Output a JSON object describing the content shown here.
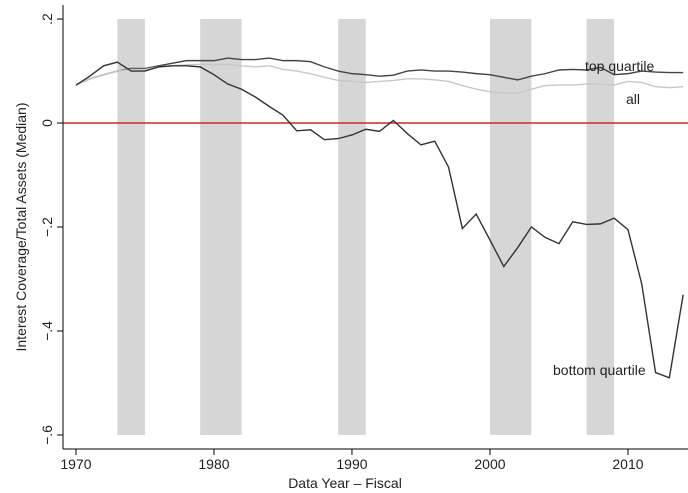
{
  "chart_data": {
    "type": "line",
    "y_label": "Interest Coverage/Total Assets (Median)",
    "x_label": "Data Year – Fiscal",
    "x": [
      1970,
      1971,
      1972,
      1973,
      1974,
      1975,
      1976,
      1977,
      1978,
      1979,
      1980,
      1981,
      1982,
      1983,
      1984,
      1985,
      1986,
      1987,
      1988,
      1989,
      1990,
      1991,
      1992,
      1993,
      1994,
      1995,
      1996,
      1997,
      1998,
      1999,
      2000,
      2001,
      2002,
      2003,
      2004,
      2005,
      2006,
      2007,
      2008,
      2009,
      2010,
      2011,
      2012,
      2013,
      2014
    ],
    "series": [
      {
        "name": "top quartile",
        "color": "#444444",
        "values": [
          0.073,
          0.085,
          0.093,
          0.1,
          0.105,
          0.105,
          0.11,
          0.115,
          0.12,
          0.12,
          0.12,
          0.125,
          0.122,
          0.122,
          0.125,
          0.12,
          0.12,
          0.118,
          0.108,
          0.1,
          0.095,
          0.093,
          0.09,
          0.092,
          0.1,
          0.102,
          0.1,
          0.1,
          0.098,
          0.095,
          0.093,
          0.088,
          0.083,
          0.09,
          0.095,
          0.102,
          0.103,
          0.102,
          0.107,
          0.093,
          0.095,
          0.1,
          0.098,
          0.097,
          0.097
        ]
      },
      {
        "name": "all",
        "color": "#c8c8c8",
        "values": [
          0.073,
          0.085,
          0.093,
          0.1,
          0.103,
          0.103,
          0.108,
          0.11,
          0.112,
          0.113,
          0.112,
          0.113,
          0.11,
          0.108,
          0.11,
          0.103,
          0.1,
          0.095,
          0.088,
          0.082,
          0.08,
          0.078,
          0.08,
          0.082,
          0.085,
          0.085,
          0.083,
          0.08,
          0.072,
          0.065,
          0.06,
          0.058,
          0.057,
          0.065,
          0.072,
          0.073,
          0.073,
          0.075,
          0.075,
          0.073,
          0.08,
          0.078,
          0.07,
          0.068,
          0.07
        ]
      },
      {
        "name": "bottom quartile",
        "color": "#333333",
        "values": [
          0.073,
          0.09,
          0.11,
          0.117,
          0.1,
          0.1,
          0.108,
          0.11,
          0.11,
          0.108,
          0.093,
          0.075,
          0.065,
          0.05,
          0.032,
          0.015,
          -0.015,
          -0.013,
          -0.032,
          -0.03,
          -0.023,
          -0.012,
          -0.016,
          0.005,
          -0.02,
          -0.042,
          -0.035,
          -0.085,
          -0.203,
          -0.175,
          -0.225,
          -0.276,
          -0.24,
          -0.2,
          -0.22,
          -0.232,
          -0.19,
          -0.195,
          -0.194,
          -0.183,
          -0.205,
          -0.31,
          -0.48,
          -0.49,
          -0.33
        ]
      }
    ],
    "shaded_periods": [
      [
        1973,
        1975
      ],
      [
        1979,
        1982
      ],
      [
        1989,
        1991
      ],
      [
        2000,
        2003
      ],
      [
        2007,
        2009
      ]
    ],
    "shade_color": "#d6d6d6",
    "reference_line": 0,
    "reference_color": "#cc2a2a",
    "xlim": [
      1969.06,
      2014.35
    ],
    "ylim": [
      -0.627,
      0.227
    ],
    "xticks": [
      1970,
      1980,
      1990,
      2000,
      2010
    ],
    "yticks": [
      {
        "value": -0.6,
        "label": "−.6"
      },
      {
        "value": -0.4,
        "label": "−.4"
      },
      {
        "value": -0.2,
        "label": "−.2"
      },
      0,
      {
        "value": 0.2,
        "label": ".2"
      }
    ],
    "grid": false
  }
}
